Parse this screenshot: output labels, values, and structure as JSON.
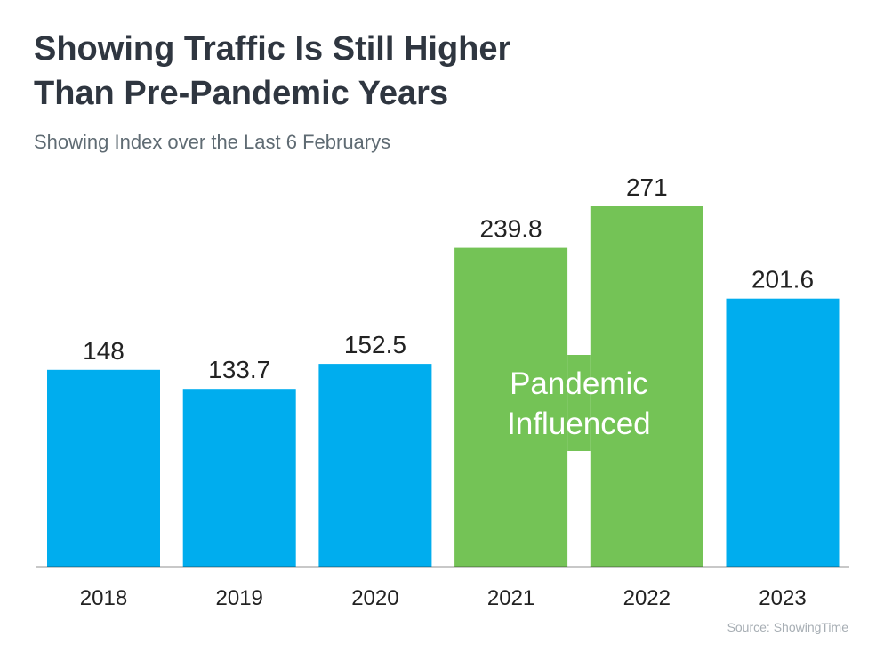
{
  "title_lines": [
    "Showing Traffic Is Still Higher",
    "Than Pre-Pandemic Years"
  ],
  "subtitle": "Showing Index over the Last 6 Februarys",
  "source": "Source: ShowingTime",
  "annotation_lines": [
    "Pandemic",
    "Influenced"
  ],
  "colors": {
    "standard": "#00ADEE",
    "pandemic": "#74C356",
    "axis": "#222222",
    "text": "#222222",
    "annotation": "#ffffff"
  },
  "chart_data": {
    "type": "bar",
    "categories": [
      "2018",
      "2019",
      "2020",
      "2021",
      "2022",
      "2023"
    ],
    "values": [
      148,
      133.7,
      152.5,
      239.8,
      271,
      201.6
    ],
    "value_labels": [
      "148",
      "133.7",
      "152.5",
      "239.8",
      "271",
      "201.6"
    ],
    "bar_groups": [
      "standard",
      "standard",
      "standard",
      "pandemic",
      "pandemic",
      "standard"
    ],
    "ylim": [
      0,
      271
    ],
    "grid": false,
    "legend": "none"
  }
}
